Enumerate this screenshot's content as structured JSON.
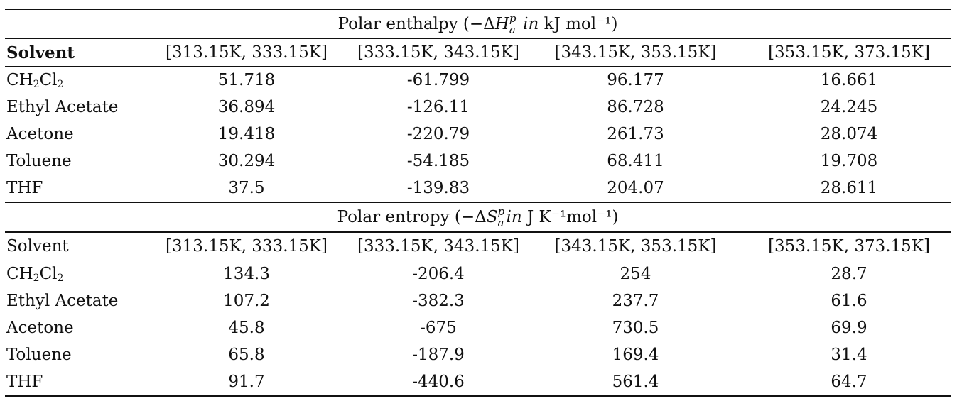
{
  "sections": [
    {
      "title": {
        "pre": "Polar enthalpy (−Δ",
        "sym": "H",
        "sup": "p",
        "sub": "a",
        "mid": " in",
        "post": " kJ mol⁻¹)"
      },
      "header": [
        "Solvent",
        "[313.15K, 333.15K]",
        "[333.15K, 343.15K]",
        "[343.15K, 353.15K]",
        "[353.15K, 373.15K]"
      ],
      "rows": [
        {
          "solvent": {
            "main": "CH",
            "sub1": "2",
            "mid": "Cl",
            "sub2": "2"
          },
          "values": [
            "51.718",
            "-61.799",
            "96.177",
            "16.661"
          ]
        },
        {
          "solvent": "Ethyl Acetate",
          "values": [
            "36.894",
            "-126.11",
            "86.728",
            "24.245"
          ]
        },
        {
          "solvent": "Acetone",
          "values": [
            "19.418",
            "-220.79",
            "261.73",
            "28.074"
          ]
        },
        {
          "solvent": "Toluene",
          "values": [
            "30.294",
            "-54.185",
            "68.411",
            "19.708"
          ]
        },
        {
          "solvent": "THF",
          "values": [
            "37.5",
            "-139.83",
            "204.07",
            "28.611"
          ]
        }
      ]
    },
    {
      "title": {
        "pre": "Polar entropy (−Δ",
        "sym": "S",
        "sup": "p",
        "sub": "a",
        "mid": "in",
        "post": " J K⁻¹mol⁻¹)"
      },
      "header": [
        "Solvent",
        "[313.15K, 333.15K]",
        "[333.15K, 343.15K]",
        "[343.15K, 353.15K]",
        "[353.15K, 373.15K]"
      ],
      "rows": [
        {
          "solvent": {
            "main": "CH",
            "sub1": "2",
            "mid": "Cl",
            "sub2": "2"
          },
          "values": [
            "134.3",
            "-206.4",
            "254",
            "28.7"
          ]
        },
        {
          "solvent": "Ethyl Acetate",
          "values": [
            "107.2",
            "-382.3",
            "237.7",
            "61.6"
          ]
        },
        {
          "solvent": "Acetone",
          "values": [
            "45.8",
            "-675",
            "730.5",
            "69.9"
          ]
        },
        {
          "solvent": "Toluene",
          "values": [
            "65.8",
            "-187.9",
            "169.4",
            "31.4"
          ]
        },
        {
          "solvent": "THF",
          "values": [
            "91.7",
            "-440.6",
            "561.4",
            "64.7"
          ]
        }
      ]
    }
  ]
}
